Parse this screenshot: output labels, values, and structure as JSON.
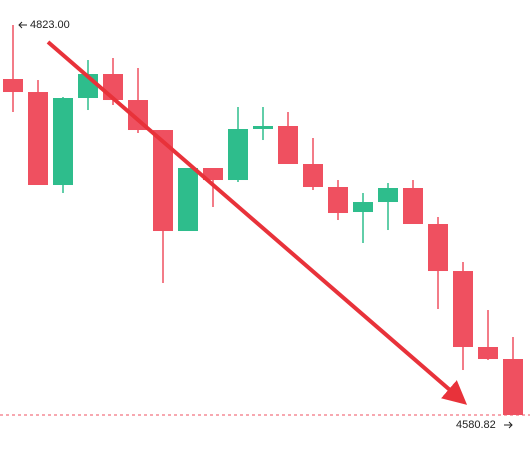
{
  "chart_data": {
    "type": "candlestick",
    "open": [
      4789.47,
      4781.39,
      4723.64,
      4777.67,
      4792.57,
      4776.42,
      4757.79,
      4695.07,
      4734.2,
      4726.74,
      4758.42,
      4760.28,
      4736.68,
      4722.4,
      4706.87,
      4713.08,
      4721.78,
      4699.42,
      4670.23,
      4623.04,
      4615.59
    ],
    "high": [
      4823.0,
      4788.84,
      4778.29,
      4801.26,
      4802.51,
      4796.3,
      4757.79,
      4734.2,
      4734.2,
      4772.08,
      4772.08,
      4768.97,
      4752.83,
      4726.74,
      4718.67,
      4724.88,
      4726.74,
      4703.77,
      4675.82,
      4646.01,
      4629.25
    ],
    "low": [
      4768.97,
      4723.64,
      4718.67,
      4770.21,
      4773.32,
      4755.93,
      4662.78,
      4695.07,
      4709.98,
      4725.5,
      4751.58,
      4736.68,
      4720.53,
      4701.9,
      4687.62,
      4695.69,
      4699.42,
      4646.64,
      4608.75,
      4614.96,
      4580.82
    ],
    "close": [
      4781.39,
      4723.64,
      4777.67,
      4792.57,
      4776.42,
      4757.79,
      4695.07,
      4734.2,
      4726.74,
      4758.42,
      4760.28,
      4736.68,
      4722.4,
      4706.25,
      4713.08,
      4721.78,
      4699.42,
      4670.23,
      4623.04,
      4615.59,
      4580.82
    ],
    "up_color": "#2ebd8c",
    "down_color": "#ef5060",
    "ylim": [
      4559.08,
      4838.53
    ],
    "high_label": {
      "value": 4823.0,
      "label": "4823.00"
    },
    "low_label": {
      "value": 4580.82,
      "label": "4580.82"
    }
  }
}
